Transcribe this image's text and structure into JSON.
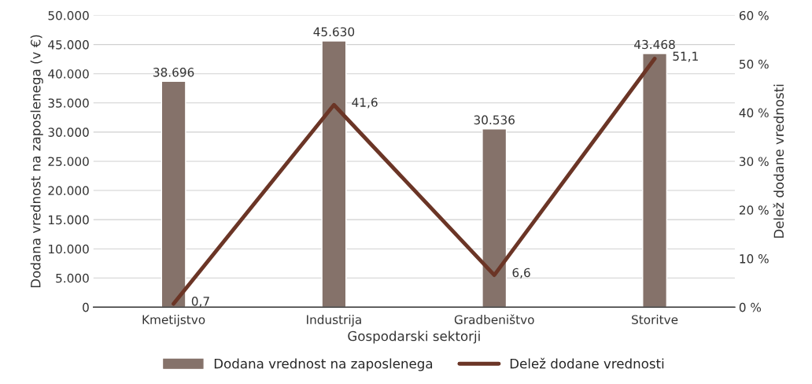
{
  "chart_data": {
    "type": "bar",
    "xlabel": "Gospodarski sektorji",
    "ylabel": "Dodana vrednost na zaposlenega (v €)",
    "y2label": "Delež dodane vrednosti",
    "categories": [
      "Kmetijstvo",
      "Industrija",
      "Gradbeništvo",
      "Storitve"
    ],
    "series": [
      {
        "name": "Dodana vrednost na zaposlenega",
        "color": "#85726a",
        "values": [
          38696,
          45630,
          30536,
          43468
        ],
        "value_labels": [
          "38.696",
          "45.630",
          "30.536",
          "43.468"
        ]
      },
      {
        "name": "Delež dodane vrednosti",
        "type": "line",
        "axis": "y2",
        "color": "#6b3526",
        "values": [
          0.7,
          41.6,
          6.6,
          51.1
        ],
        "value_labels": [
          "0,7",
          "41,6",
          "6,6",
          "51,1"
        ]
      }
    ],
    "ylim": [
      0,
      50000
    ],
    "yticks": [
      0,
      {
        "value": 5000,
        "label": "5.000"
      },
      {
        "value": 10000,
        "label": "10.000"
      },
      {
        "value": 15000,
        "label": "15.000"
      },
      {
        "value": 20000,
        "label": "20.000"
      },
      {
        "value": 25000,
        "label": "25.000"
      },
      {
        "value": 30000,
        "label": "30.000"
      },
      {
        "value": 35000,
        "label": "35.000"
      },
      {
        "value": 40000,
        "label": "40.000"
      },
      {
        "value": 45000,
        "label": "45.000"
      },
      {
        "value": 50000,
        "label": "50.000"
      }
    ],
    "y2lim": [
      0,
      60
    ],
    "y2ticks": [
      {
        "value": 0,
        "label": "0 %"
      },
      {
        "value": 10,
        "label": "10 %"
      },
      {
        "value": 20,
        "label": "20 %"
      },
      {
        "value": 30,
        "label": "30 %"
      },
      {
        "value": 40,
        "label": "40 %"
      },
      {
        "value": 50,
        "label": "50 %"
      },
      {
        "value": 60,
        "label": "60 %"
      }
    ],
    "grid": "y",
    "legend": "bottom",
    "line_style": "solid",
    "marker": "none"
  }
}
